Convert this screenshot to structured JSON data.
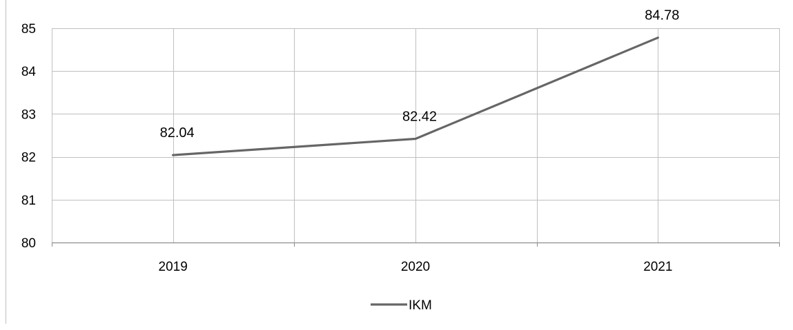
{
  "chart_data": {
    "type": "line",
    "title": "",
    "xlabel": "",
    "ylabel": "",
    "categories": [
      "2019",
      "2020",
      "2021"
    ],
    "series": [
      {
        "name": "IKM",
        "values": [
          82.04,
          82.42,
          84.78
        ],
        "data_labels": [
          "82.04",
          "82.42",
          "84.78"
        ]
      }
    ],
    "ylim": [
      80,
      85
    ],
    "y_ticks": [
      "80",
      "81",
      "82",
      "83",
      "84",
      "85"
    ],
    "grid": true,
    "legend_position": "bottom",
    "colors": {
      "line": "#666666",
      "grid": "#bfbfbf",
      "axis": "#8c8c8c"
    }
  }
}
